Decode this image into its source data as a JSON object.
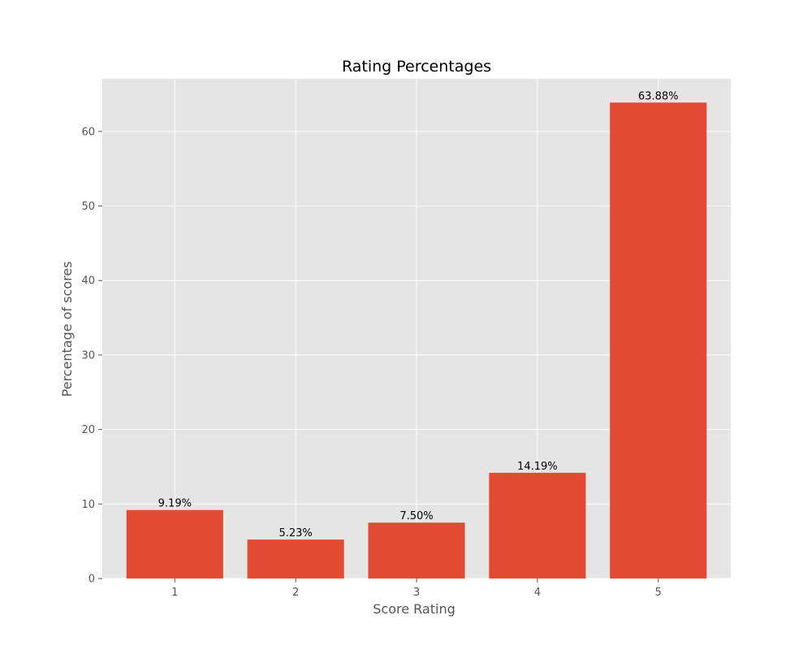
{
  "chart_data": {
    "type": "bar",
    "title": "Rating Percentages",
    "xlabel": "Score Rating",
    "ylabel": "Percentage of scores",
    "categories": [
      "1",
      "2",
      "3",
      "4",
      "5"
    ],
    "values": [
      9.19,
      5.23,
      7.5,
      14.19,
      63.88
    ],
    "data_labels": [
      "9.19%",
      "5.23%",
      "7.50%",
      "14.19%",
      "63.88%"
    ],
    "ylim": [
      0,
      67.07
    ],
    "yticks": [
      0,
      10,
      20,
      30,
      40,
      50,
      60
    ],
    "grid": true,
    "legend": "none",
    "colors": {
      "bar": "#E24A33",
      "plot_background": "#E5E5E5",
      "grid": "#FFFFFF"
    }
  }
}
